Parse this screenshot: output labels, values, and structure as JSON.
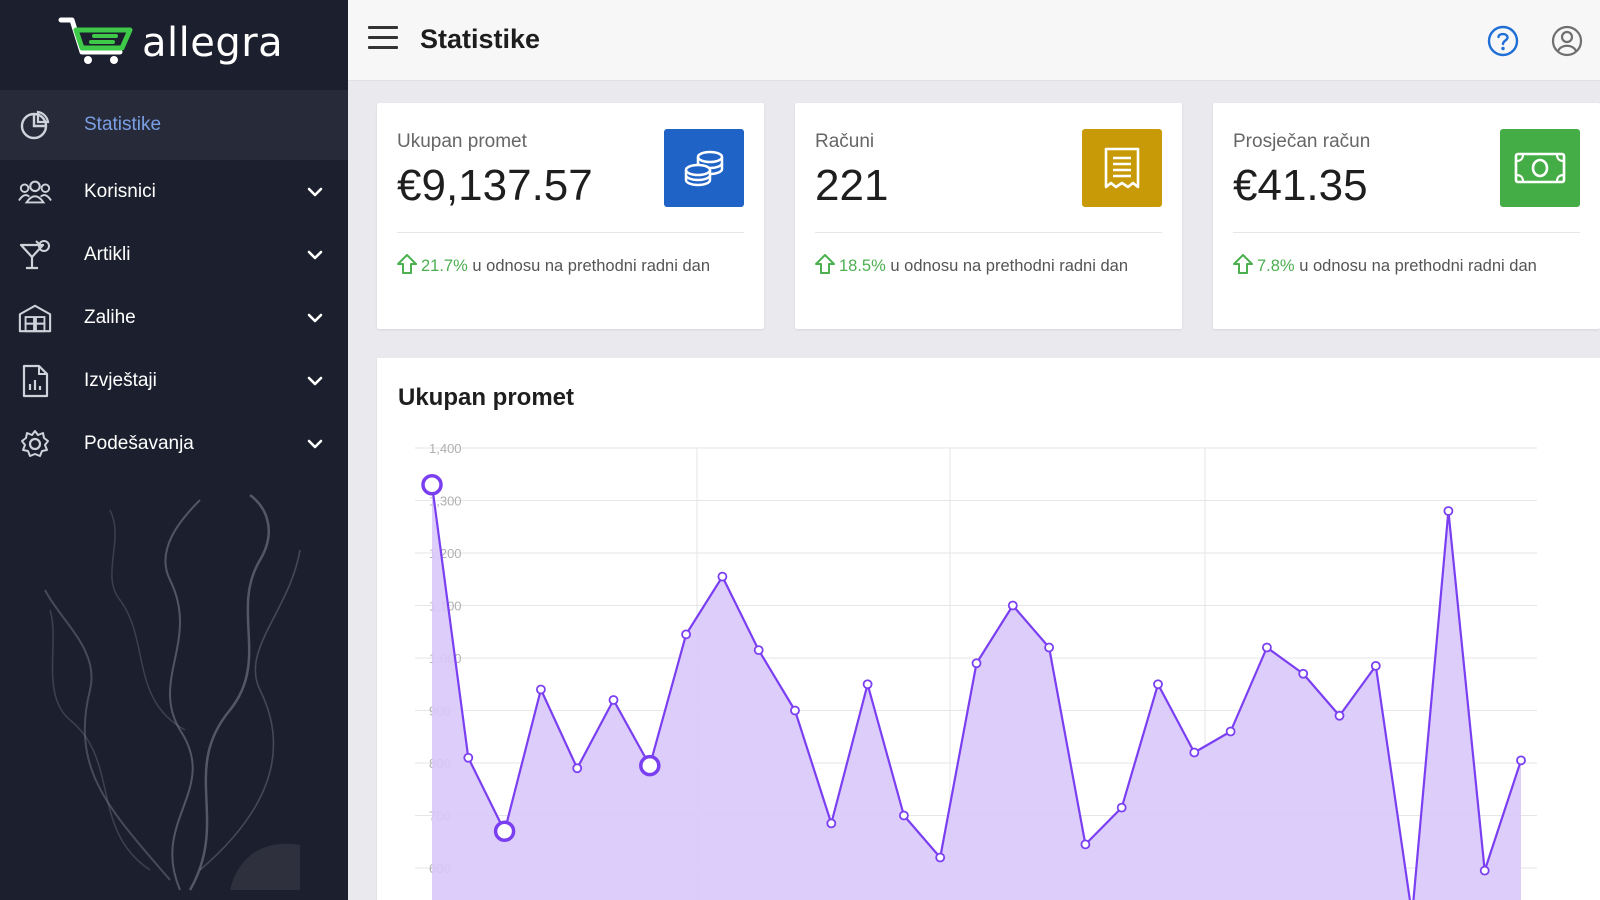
{
  "brand": {
    "name": "allegra",
    "accent": "#3ec948"
  },
  "sidebar": {
    "items": [
      {
        "label": "Statistike",
        "icon": "pie-chart-icon",
        "active": true,
        "has_submenu": false
      },
      {
        "label": "Korisnici",
        "icon": "users-icon",
        "active": false,
        "has_submenu": true
      },
      {
        "label": "Artikli",
        "icon": "cocktail-icon",
        "active": false,
        "has_submenu": true
      },
      {
        "label": "Zalihe",
        "icon": "warehouse-icon",
        "active": false,
        "has_submenu": true
      },
      {
        "label": "Izvještaji",
        "icon": "report-icon",
        "active": false,
        "has_submenu": true
      },
      {
        "label": "Podešavanja",
        "icon": "gear-icon",
        "active": false,
        "has_submenu": true
      }
    ]
  },
  "header": {
    "title": "Statistike"
  },
  "cards": [
    {
      "label": "Ukupan promet",
      "value": "€9,137.57",
      "change": "21.7%",
      "change_text": "u odnosu na prethodni radni dan",
      "icon": "coins-icon",
      "color": "#1f63c6"
    },
    {
      "label": "Računi",
      "value": "221",
      "change": "18.5%",
      "change_text": "u odnosu na prethodni radni dan",
      "icon": "receipt-icon",
      "color": "#c99a08"
    },
    {
      "label": "Prosječan račun",
      "value": "€41.35",
      "change": "7.8%",
      "change_text": "u odnosu na prethodni radni dan",
      "icon": "banknote-icon",
      "color": "#45ad46"
    }
  ],
  "chart_data": {
    "type": "area",
    "title": "Ukupan promet",
    "yticks": [
      "1,400",
      "1,300",
      "1,200",
      "1,100",
      "1,000",
      "900",
      "800",
      "700",
      "600"
    ],
    "ylim": [
      500,
      1400
    ],
    "grid": true,
    "line_color": "#7b3ff2",
    "fill_color": "#d9c8fb",
    "values": [
      1330,
      810,
      670,
      940,
      790,
      920,
      795,
      1045,
      1155,
      1015,
      900,
      685,
      950,
      700,
      620,
      990,
      1100,
      1020,
      645,
      715,
      950,
      820,
      860,
      1020,
      970,
      890,
      985,
      510,
      1280,
      595,
      805
    ],
    "highlighted": [
      0,
      2,
      6
    ]
  }
}
